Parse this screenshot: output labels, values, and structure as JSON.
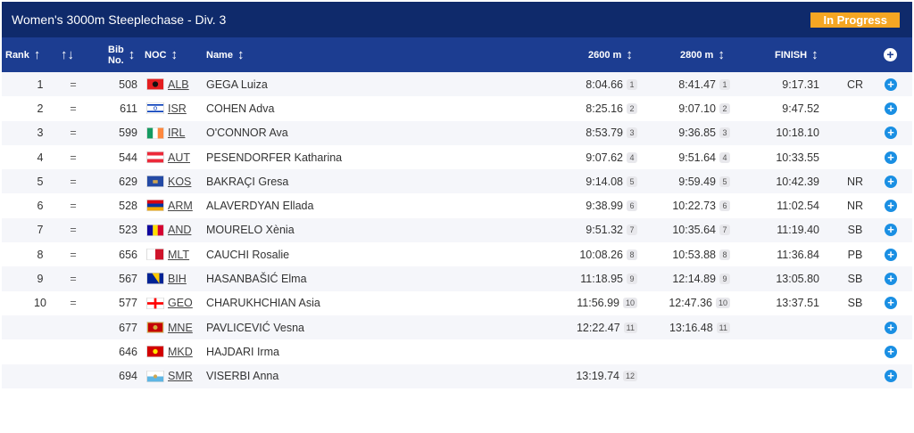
{
  "event": {
    "title": "Women's 3000m Steeplechase - Div. 3",
    "status": "In Progress",
    "status_color": "#f5a623"
  },
  "columns": {
    "rank": "Rank",
    "bib_line1": "Bib",
    "bib_line2": "No.",
    "noc": "NOC",
    "name": "Name",
    "split_2600": "2600 m",
    "split_2800": "2800 m",
    "finish": "FINISH",
    "sort_icon": "sort-icon",
    "rank_change_icon": "up-down-arrows-icon"
  },
  "rows": [
    {
      "rank": "1",
      "change": "=",
      "bib": "508",
      "noc": "ALB",
      "name": "GEGA Luiza",
      "t2600": "8:04.66",
      "p2600": "1",
      "t2800": "8:41.47",
      "p2800": "1",
      "finish": "9:17.31",
      "record": "CR"
    },
    {
      "rank": "2",
      "change": "=",
      "bib": "611",
      "noc": "ISR",
      "name": "COHEN Adva",
      "t2600": "8:25.16",
      "p2600": "2",
      "t2800": "9:07.10",
      "p2800": "2",
      "finish": "9:47.52",
      "record": ""
    },
    {
      "rank": "3",
      "change": "=",
      "bib": "599",
      "noc": "IRL",
      "name": "O'CONNOR Ava",
      "t2600": "8:53.79",
      "p2600": "3",
      "t2800": "9:36.85",
      "p2800": "3",
      "finish": "10:18.10",
      "record": ""
    },
    {
      "rank": "4",
      "change": "=",
      "bib": "544",
      "noc": "AUT",
      "name": "PESENDORFER Katharina",
      "t2600": "9:07.62",
      "p2600": "4",
      "t2800": "9:51.64",
      "p2800": "4",
      "finish": "10:33.55",
      "record": ""
    },
    {
      "rank": "5",
      "change": "=",
      "bib": "629",
      "noc": "KOS",
      "name": "BAKRAÇI Gresa",
      "t2600": "9:14.08",
      "p2600": "5",
      "t2800": "9:59.49",
      "p2800": "5",
      "finish": "10:42.39",
      "record": "NR"
    },
    {
      "rank": "6",
      "change": "=",
      "bib": "528",
      "noc": "ARM",
      "name": "ALAVERDYAN Ellada",
      "t2600": "9:38.99",
      "p2600": "6",
      "t2800": "10:22.73",
      "p2800": "6",
      "finish": "11:02.54",
      "record": "NR"
    },
    {
      "rank": "7",
      "change": "=",
      "bib": "523",
      "noc": "AND",
      "name": "MOURELO Xènia",
      "t2600": "9:51.32",
      "p2600": "7",
      "t2800": "10:35.64",
      "p2800": "7",
      "finish": "11:19.40",
      "record": "SB"
    },
    {
      "rank": "8",
      "change": "=",
      "bib": "656",
      "noc": "MLT",
      "name": "CAUCHI Rosalie",
      "t2600": "10:08.26",
      "p2600": "8",
      "t2800": "10:53.88",
      "p2800": "8",
      "finish": "11:36.84",
      "record": "PB"
    },
    {
      "rank": "9",
      "change": "=",
      "bib": "567",
      "noc": "BIH",
      "name": "HASANBAŠIĆ Elma",
      "t2600": "11:18.95",
      "p2600": "9",
      "t2800": "12:14.89",
      "p2800": "9",
      "finish": "13:05.80",
      "record": "SB"
    },
    {
      "rank": "10",
      "change": "=",
      "bib": "577",
      "noc": "GEO",
      "name": "CHARUKHCHIAN Asia",
      "t2600": "11:56.99",
      "p2600": "10",
      "t2800": "12:47.36",
      "p2800": "10",
      "finish": "13:37.51",
      "record": "SB"
    },
    {
      "rank": "",
      "change": "",
      "bib": "677",
      "noc": "MNE",
      "name": "PAVLICEVIĆ Vesna",
      "t2600": "12:22.47",
      "p2600": "11",
      "t2800": "13:16.48",
      "p2800": "11",
      "finish": "",
      "record": ""
    },
    {
      "rank": "",
      "change": "",
      "bib": "646",
      "noc": "MKD",
      "name": "HAJDARI Irma",
      "t2600": "",
      "p2600": "",
      "t2800": "",
      "p2800": "",
      "finish": "",
      "record": ""
    },
    {
      "rank": "",
      "change": "",
      "bib": "694",
      "noc": "SMR",
      "name": "VISERBI Anna",
      "t2600": "13:19.74",
      "p2600": "12",
      "t2800": "",
      "p2800": "",
      "finish": "",
      "record": ""
    }
  ],
  "flags": {
    "ALB": [
      "#e41e20",
      "#e41e20",
      "#e41e20",
      "#111111"
    ],
    "ISR": [
      "#ffffff",
      "#0038b8",
      "#ffffff",
      "#0038b8"
    ],
    "IRL": [
      "#169b62",
      "#ffffff",
      "#ff883e",
      ""
    ],
    "AUT": [
      "#ed2939",
      "#ffffff",
      "#ed2939",
      ""
    ],
    "KOS": [
      "#244aa5",
      "#244aa5",
      "#244aa5",
      "#d0a650"
    ],
    "ARM": [
      "#d90012",
      "#0033a0",
      "#f2a800",
      ""
    ],
    "AND": [
      "#10069f",
      "#fedf00",
      "#d50032",
      ""
    ],
    "MLT": [
      "#ffffff",
      "#cf142b",
      "",
      ""
    ],
    "BIH": [
      "#002395",
      "#fecb00",
      "#ffffff",
      ""
    ],
    "GEO": [
      "#ffffff",
      "#ff0000",
      "",
      ""
    ],
    "MNE": [
      "#c40308",
      "#d3ae3b",
      "",
      ""
    ],
    "MKD": [
      "#d20000",
      "#ffe600",
      "",
      ""
    ],
    "SMR": [
      "#ffffff",
      "#5eb6e4",
      "",
      ""
    ]
  }
}
